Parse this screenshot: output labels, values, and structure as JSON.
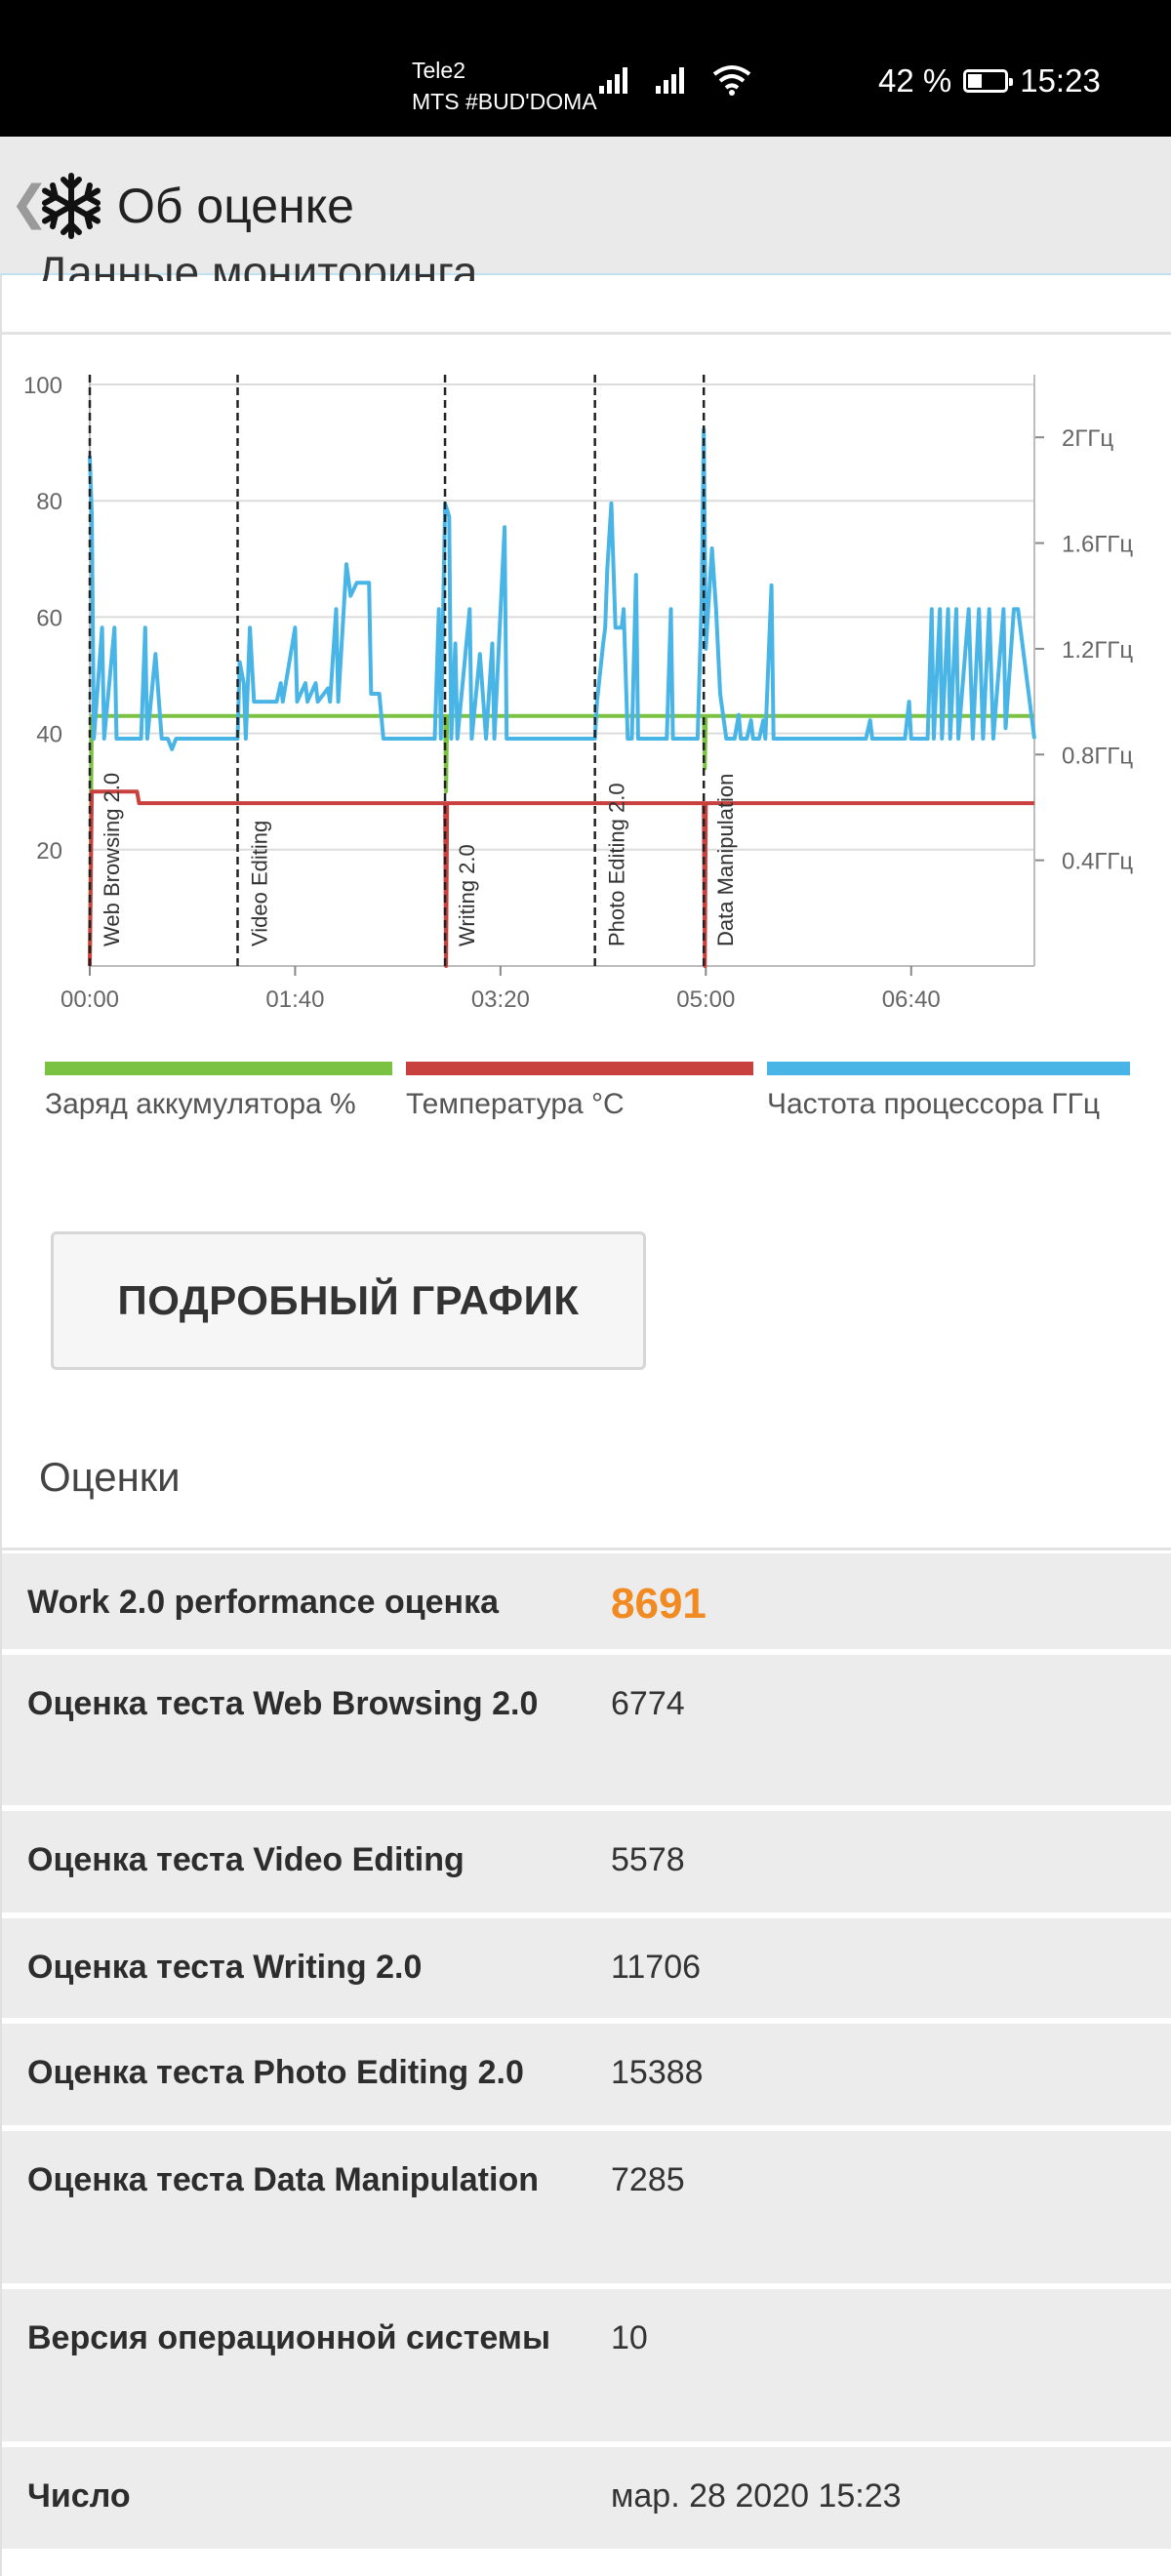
{
  "status": {
    "carrier1": "Tele2",
    "carrier2": "MTS #BUD'DOMA",
    "battery": "42 %",
    "time": "15:23",
    "icons": [
      "signal-icon",
      "signal-icon",
      "wifi-icon",
      "battery-icon"
    ]
  },
  "appbar": {
    "back_icon": "chevron-left-icon",
    "logo_icon": "snowflake-icon",
    "title": "Об оценке"
  },
  "section_title": "Данные мониторинга",
  "chart_data": {
    "type": "line",
    "x_ticks": [
      "00:00",
      "01:40",
      "03:20",
      "05:00",
      "06:40"
    ],
    "x_range_seconds": [
      0,
      460
    ],
    "y_left_ticks": [
      "20",
      "40",
      "60",
      "80",
      "100"
    ],
    "y_left_range": [
      0,
      100
    ],
    "y_right_ticks": [
      "0.4ГГц",
      "0.8ГГц",
      "1.2ГГц",
      "1.6ГГц",
      "2ГГц"
    ],
    "y_right_range_ghz": [
      0,
      2.2
    ],
    "grid": true,
    "test_markers": [
      {
        "label": "Web Browsing 2.0",
        "t": 0
      },
      {
        "label": "Video Editing",
        "t": 72
      },
      {
        "label": "Writing 2.0",
        "t": 173
      },
      {
        "label": "Photo Editing 2.0",
        "t": 246
      },
      {
        "label": "Data Manipulation",
        "t": 299
      }
    ],
    "series": [
      {
        "name": "Заряд аккумулятора %",
        "color": "#7cc242",
        "axis": "left",
        "points": [
          [
            0,
            0
          ],
          [
            1,
            43
          ],
          [
            173,
            43
          ],
          [
            173.5,
            30
          ],
          [
            174,
            43
          ],
          [
            299,
            43
          ],
          [
            299.5,
            34
          ],
          [
            300,
            43
          ],
          [
            460,
            43
          ]
        ]
      },
      {
        "name": "Температура °C",
        "color": "#c8413f",
        "axis": "left",
        "points": [
          [
            0,
            0
          ],
          [
            1,
            30
          ],
          [
            23,
            30
          ],
          [
            24,
            28
          ],
          [
            173,
            28
          ],
          [
            173.5,
            0
          ],
          [
            174,
            28
          ],
          [
            299,
            28
          ],
          [
            299.5,
            0
          ],
          [
            300,
            28
          ],
          [
            460,
            28
          ]
        ]
      },
      {
        "name": "Частота процессора ГГц",
        "color": "#49b5e6",
        "axis": "right",
        "points": [
          [
            0,
            1.93
          ],
          [
            1,
            1.7
          ],
          [
            2,
            0.86
          ],
          [
            6,
            1.28
          ],
          [
            7,
            0.86
          ],
          [
            12,
            1.28
          ],
          [
            13,
            0.86
          ],
          [
            25,
            0.86
          ],
          [
            27,
            1.28
          ],
          [
            28,
            0.86
          ],
          [
            32,
            1.18
          ],
          [
            35,
            0.86
          ],
          [
            38,
            0.86
          ],
          [
            40,
            0.82
          ],
          [
            42,
            0.86
          ],
          [
            72,
            0.86
          ],
          [
            73,
            1.15
          ],
          [
            75,
            1.07
          ],
          [
            76,
            0.86
          ],
          [
            78,
            1.28
          ],
          [
            80,
            1.0
          ],
          [
            84,
            1.0
          ],
          [
            91,
            1.0
          ],
          [
            93,
            1.07
          ],
          [
            94,
            1.0
          ],
          [
            100,
            1.28
          ],
          [
            101,
            1.0
          ],
          [
            105,
            1.07
          ],
          [
            106,
            1.0
          ],
          [
            110,
            1.07
          ],
          [
            111,
            1.0
          ],
          [
            116,
            1.05
          ],
          [
            117,
            1.0
          ],
          [
            120,
            1.35
          ],
          [
            121,
            1.0
          ],
          [
            125,
            1.52
          ],
          [
            127,
            1.4
          ],
          [
            130,
            1.45
          ],
          [
            136,
            1.45
          ],
          [
            137,
            1.03
          ],
          [
            141,
            1.03
          ],
          [
            143,
            0.86
          ],
          [
            168,
            0.86
          ],
          [
            170,
            1.35
          ],
          [
            171,
            0.86
          ],
          [
            173,
            1.75
          ],
          [
            175,
            1.7
          ],
          [
            176,
            0.86
          ],
          [
            178,
            1.22
          ],
          [
            179,
            0.86
          ],
          [
            185,
            1.35
          ],
          [
            186,
            0.86
          ],
          [
            190,
            1.18
          ],
          [
            193,
            0.86
          ],
          [
            196,
            1.22
          ],
          [
            197,
            0.86
          ],
          [
            202,
            1.66
          ],
          [
            203,
            0.86
          ],
          [
            220,
            0.86
          ],
          [
            246,
            0.86
          ],
          [
            247,
            1.0
          ],
          [
            250,
            1.22
          ],
          [
            251,
            1.28
          ],
          [
            252,
            1.5
          ],
          [
            254,
            1.75
          ],
          [
            256,
            1.28
          ],
          [
            259,
            1.28
          ],
          [
            260,
            1.35
          ],
          [
            262,
            0.86
          ],
          [
            264,
            0.86
          ],
          [
            266,
            1.48
          ],
          [
            267,
            0.86
          ],
          [
            268,
            0.86
          ],
          [
            281,
            0.86
          ],
          [
            283,
            1.35
          ],
          [
            284,
            0.86
          ],
          [
            296,
            0.86
          ],
          [
            298,
            1.4
          ],
          [
            299,
            2.03
          ],
          [
            300,
            1.2
          ],
          [
            303,
            1.58
          ],
          [
            305,
            1.35
          ],
          [
            307,
            1.03
          ],
          [
            310,
            0.86
          ],
          [
            314,
            0.86
          ],
          [
            316,
            0.95
          ],
          [
            317,
            0.86
          ],
          [
            320,
            0.86
          ],
          [
            322,
            0.93
          ],
          [
            323,
            0.86
          ],
          [
            326,
            0.86
          ],
          [
            328,
            0.93
          ],
          [
            329,
            0.86
          ],
          [
            332,
            1.44
          ],
          [
            333,
            0.86
          ],
          [
            378,
            0.86
          ],
          [
            380,
            0.93
          ],
          [
            381,
            0.86
          ],
          [
            397,
            0.86
          ],
          [
            399,
            1.0
          ],
          [
            400,
            0.86
          ],
          [
            408,
            0.86
          ],
          [
            410,
            1.35
          ],
          [
            411,
            0.86
          ],
          [
            414,
            1.35
          ],
          [
            415,
            0.86
          ],
          [
            418,
            1.35
          ],
          [
            419,
            0.86
          ],
          [
            422,
            1.35
          ],
          [
            423,
            0.86
          ],
          [
            428,
            1.35
          ],
          [
            430,
            0.86
          ],
          [
            433,
            1.35
          ],
          [
            435,
            0.86
          ],
          [
            438,
            1.35
          ],
          [
            440,
            0.86
          ],
          [
            445,
            1.35
          ],
          [
            446,
            0.9
          ],
          [
            450,
            1.35
          ],
          [
            452,
            1.35
          ],
          [
            460,
            0.86
          ]
        ]
      }
    ]
  },
  "legend": [
    {
      "label": "Заряд аккумулятора %",
      "color": "#7cc242"
    },
    {
      "label": "Температура °C",
      "color": "#c8413f"
    },
    {
      "label": "Частота процессора ГГц",
      "color": "#49b5e6"
    }
  ],
  "details_button": "ПОДРОБНЫЙ ГРАФИК",
  "scores_title": "Оценки",
  "scores": [
    {
      "label": "Work 2.0 performance оценка",
      "value": "8691",
      "highlight": true
    },
    {
      "label": "Оценка теста Web Browsing 2.0",
      "value": "6774"
    },
    {
      "label": "Оценка теста Video Editing",
      "value": "5578"
    },
    {
      "label": "Оценка теста Writing 2.0",
      "value": "11706"
    },
    {
      "label": "Оценка теста Photo Editing 2.0",
      "value": "15388"
    },
    {
      "label": "Оценка теста Data Manipulation",
      "value": "7285"
    },
    {
      "label": "Версия операционной системы",
      "value": "10"
    },
    {
      "label": "Число",
      "value": "мар. 28 2020 15:23"
    }
  ]
}
